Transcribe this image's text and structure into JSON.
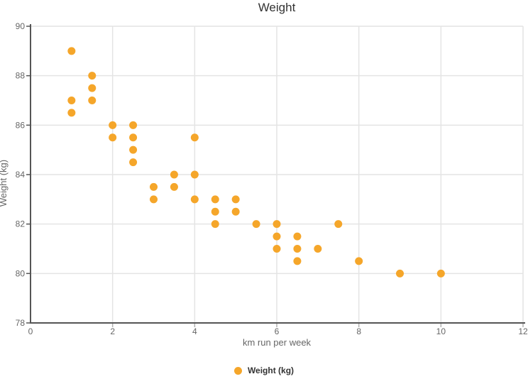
{
  "chart_data": {
    "type": "scatter",
    "title": "Weight",
    "xlabel": "km run per week",
    "ylabel": "Weight (kg)",
    "xlim": [
      0,
      12
    ],
    "ylim": [
      78,
      90
    ],
    "xticks": [
      0,
      2,
      4,
      6,
      8,
      10,
      12
    ],
    "yticks": [
      78,
      80,
      82,
      84,
      86,
      88,
      90
    ],
    "grid": true,
    "legend": {
      "position": "bottom",
      "label": "Weight (kg)"
    },
    "series": [
      {
        "name": "Weight (kg)",
        "color": "#F5A62A",
        "points": [
          {
            "x": 1,
            "y": 89
          },
          {
            "x": 1,
            "y": 87
          },
          {
            "x": 1,
            "y": 86.5
          },
          {
            "x": 1.5,
            "y": 88
          },
          {
            "x": 1.5,
            "y": 87.5
          },
          {
            "x": 1.5,
            "y": 87
          },
          {
            "x": 2,
            "y": 86
          },
          {
            "x": 2,
            "y": 85.5
          },
          {
            "x": 2.5,
            "y": 86
          },
          {
            "x": 2.5,
            "y": 85.5
          },
          {
            "x": 2.5,
            "y": 85
          },
          {
            "x": 2.5,
            "y": 84.5
          },
          {
            "x": 3,
            "y": 83.5
          },
          {
            "x": 3,
            "y": 83
          },
          {
            "x": 3.5,
            "y": 84
          },
          {
            "x": 3.5,
            "y": 83.5
          },
          {
            "x": 4,
            "y": 85.5
          },
          {
            "x": 4,
            "y": 84
          },
          {
            "x": 4,
            "y": 83
          },
          {
            "x": 4.5,
            "y": 83
          },
          {
            "x": 4.5,
            "y": 82.5
          },
          {
            "x": 4.5,
            "y": 82
          },
          {
            "x": 5,
            "y": 83
          },
          {
            "x": 5,
            "y": 82.5
          },
          {
            "x": 5.5,
            "y": 82
          },
          {
            "x": 6,
            "y": 82
          },
          {
            "x": 6,
            "y": 81.5
          },
          {
            "x": 6,
            "y": 81
          },
          {
            "x": 6.5,
            "y": 81.5
          },
          {
            "x": 6.5,
            "y": 81
          },
          {
            "x": 6.5,
            "y": 80.5
          },
          {
            "x": 7,
            "y": 81
          },
          {
            "x": 7.5,
            "y": 82
          },
          {
            "x": 8,
            "y": 80.5
          },
          {
            "x": 9,
            "y": 80
          },
          {
            "x": 10,
            "y": 80
          }
        ]
      }
    ],
    "colors": {
      "point": "#F5A62A",
      "axis": "#555555",
      "grid": "#E4E4E4",
      "x_tick_mark": "#B0B0B0",
      "tick_label": "#666666",
      "axis_title": "#666666",
      "title": "#333333",
      "legend_text": "#333333"
    }
  }
}
